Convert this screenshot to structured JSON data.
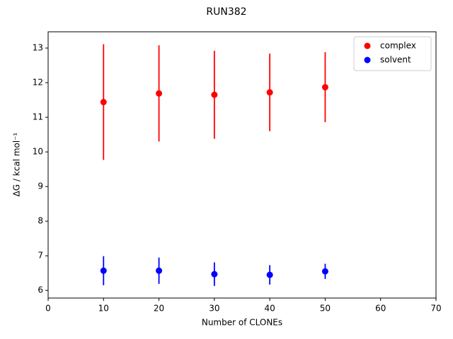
{
  "chart_data": {
    "type": "scatter",
    "title": "RUN382",
    "xlabel": "Number of CLONEs",
    "ylabel": "ΔG / kcal mol⁻¹",
    "x": [
      10,
      20,
      30,
      40,
      50
    ],
    "series": [
      {
        "name": "complex",
        "color": "#ff0000",
        "values": [
          11.44,
          11.69,
          11.65,
          11.72,
          11.87
        ],
        "errors": [
          1.67,
          1.39,
          1.27,
          1.12,
          1.01
        ]
      },
      {
        "name": "solvent",
        "color": "#0000ff",
        "values": [
          6.57,
          6.57,
          6.47,
          6.45,
          6.55
        ],
        "errors": [
          0.42,
          0.38,
          0.34,
          0.28,
          0.22
        ]
      }
    ],
    "xlim": [
      0,
      70
    ],
    "xticks": [
      0,
      10,
      20,
      30,
      40,
      50,
      60,
      70
    ],
    "ylim": [
      5.78,
      13.47
    ],
    "yticks": [
      6,
      7,
      8,
      9,
      10,
      11,
      12,
      13
    ],
    "grid": false,
    "legend": "upper right"
  }
}
